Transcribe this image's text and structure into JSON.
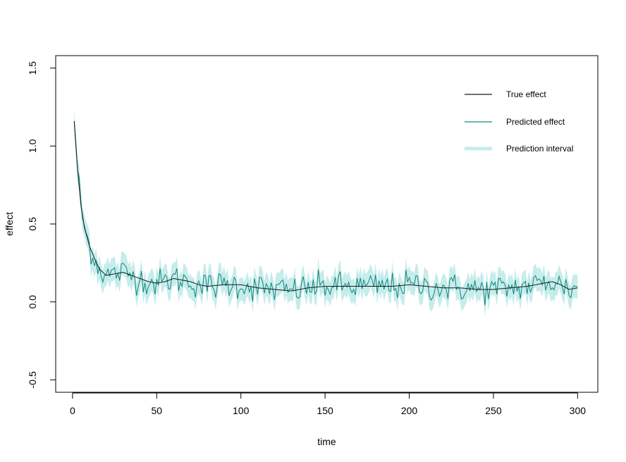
{
  "chart_data": {
    "type": "line",
    "title": "",
    "xlabel": "time",
    "ylabel": "effect",
    "xlim": [
      -10,
      312
    ],
    "ylim": [
      -0.58,
      1.58
    ],
    "x_ticks": [
      0,
      50,
      100,
      150,
      200,
      250,
      300
    ],
    "y_ticks": [
      -0.5,
      0.0,
      0.5,
      1.0,
      1.5
    ],
    "x_tick_labels": [
      "0",
      "50",
      "100",
      "150",
      "200",
      "250",
      "300"
    ],
    "y_tick_labels": [
      "-0.5",
      "0.0",
      "0.5",
      "1.0",
      "1.5"
    ],
    "grid": false,
    "legend_position": "top-right",
    "n_points": 300,
    "series": [
      {
        "name": "True effect",
        "color": "#1a1a1a",
        "kind": "line",
        "anchors": [
          [
            1,
            1.16
          ],
          [
            3,
            0.85
          ],
          [
            5,
            0.62
          ],
          [
            7,
            0.48
          ],
          [
            10,
            0.36
          ],
          [
            13,
            0.28
          ],
          [
            16,
            0.21
          ],
          [
            20,
            0.17
          ],
          [
            25,
            0.18
          ],
          [
            30,
            0.19
          ],
          [
            35,
            0.17
          ],
          [
            40,
            0.15
          ],
          [
            45,
            0.13
          ],
          [
            50,
            0.12
          ],
          [
            55,
            0.13
          ],
          [
            60,
            0.15
          ],
          [
            65,
            0.14
          ],
          [
            70,
            0.13
          ],
          [
            75,
            0.11
          ],
          [
            80,
            0.1
          ],
          [
            90,
            0.11
          ],
          [
            100,
            0.11
          ],
          [
            110,
            0.09
          ],
          [
            120,
            0.08
          ],
          [
            130,
            0.07
          ],
          [
            140,
            0.09
          ],
          [
            150,
            0.1
          ],
          [
            160,
            0.1
          ],
          [
            170,
            0.1
          ],
          [
            180,
            0.1
          ],
          [
            190,
            0.1
          ],
          [
            200,
            0.11
          ],
          [
            210,
            0.1
          ],
          [
            220,
            0.09
          ],
          [
            230,
            0.09
          ],
          [
            240,
            0.08
          ],
          [
            250,
            0.08
          ],
          [
            260,
            0.09
          ],
          [
            270,
            0.1
          ],
          [
            280,
            0.12
          ],
          [
            285,
            0.13
          ],
          [
            290,
            0.11
          ],
          [
            295,
            0.08
          ],
          [
            300,
            0.09
          ]
        ]
      },
      {
        "name": "Predicted effect",
        "color": "#10877a",
        "kind": "line",
        "noise_sd": 0.045
      },
      {
        "name": "Prediction interval",
        "color": "#c6ecec",
        "kind": "band",
        "half_width": 0.075
      }
    ]
  }
}
